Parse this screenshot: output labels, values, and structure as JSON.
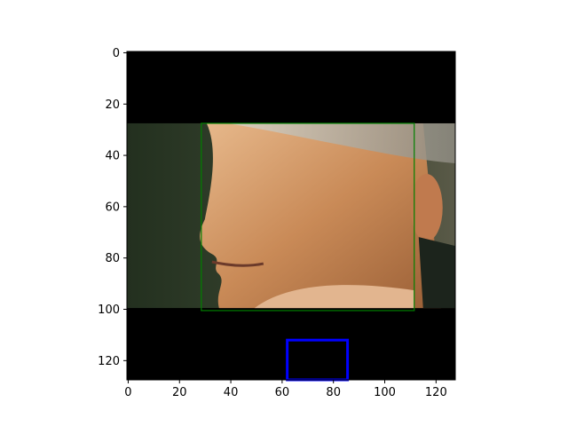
{
  "chart_data": {
    "type": "image",
    "title": "",
    "xlabel": "",
    "ylabel": "",
    "xlim": [
      -0.5,
      127.5
    ],
    "ylim": [
      127.5,
      -0.5
    ],
    "x_ticks": [
      0,
      20,
      40,
      60,
      80,
      100,
      120
    ],
    "y_ticks": [
      0,
      20,
      40,
      60,
      80,
      100,
      120
    ],
    "image": {
      "description_free": true,
      "black_band_top": [
        0,
        28
      ],
      "photo_rows": [
        28,
        100
      ],
      "black_band_bottom": [
        100,
        128
      ]
    },
    "boxes": [
      {
        "name": "face-box",
        "color": "#008000",
        "x0": 28.5,
        "y0": 27.5,
        "x1": 111.5,
        "y1": 100.5,
        "line": "thin"
      },
      {
        "name": "blue-box",
        "color": "#0000ff",
        "x0": 62,
        "y0": 112,
        "x1": 85.5,
        "y1": 127.5,
        "line": "thick"
      }
    ]
  }
}
